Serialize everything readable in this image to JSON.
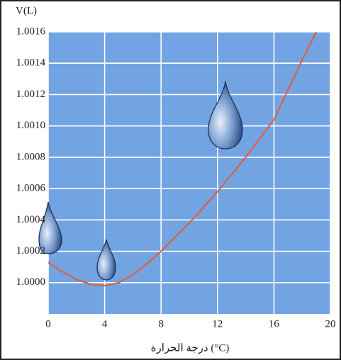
{
  "chart_data": {
    "type": "line",
    "y_label": "V(L)",
    "x_label": "درجة الحرارة (°C)",
    "x": [
      0,
      1,
      2,
      3,
      4,
      5,
      6,
      7,
      8,
      10,
      12,
      14,
      16,
      18,
      19
    ],
    "series": [
      {
        "color": "#d9643e",
        "values": [
          1.00013,
          1.00007,
          1.00002,
          0.99999,
          0.99998,
          1.0,
          1.00005,
          1.00012,
          1.0002,
          1.00038,
          1.00058,
          1.0008,
          1.00104,
          1.00142,
          1.0016
        ]
      }
    ],
    "xlim": [
      0,
      20
    ],
    "xticks": [
      0,
      4,
      8,
      12,
      16,
      20
    ],
    "ylim": [
      0.9998,
      1.0016
    ],
    "yticks": [
      {
        "value": 1,
        "label": "1.0000"
      },
      1.0002,
      1.0004,
      1.0006,
      1.0008,
      {
        "value": 1.001,
        "label": "1.0010"
      },
      1.0012,
      1.0014,
      1.0016
    ],
    "grid": true,
    "background": "#72a3e2"
  }
}
